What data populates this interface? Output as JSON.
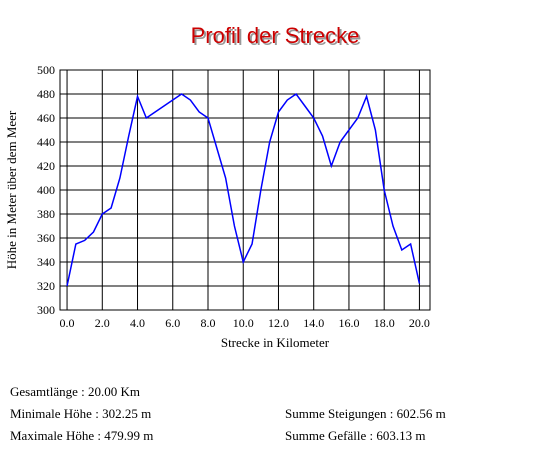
{
  "chart_data": {
    "type": "line",
    "title": "Profil der Strecke",
    "x_label": "Strecke in Kilometer",
    "y_label": "Höhe in Meter über dem Meer",
    "x": [
      0,
      0.5,
      1,
      1.5,
      2,
      2.5,
      3,
      3.5,
      4,
      4.5,
      5,
      5.5,
      6,
      6.5,
      7,
      7.5,
      8,
      8.5,
      9,
      9.5,
      10,
      10.5,
      11,
      11.5,
      12,
      12.5,
      13,
      13.5,
      14,
      14.5,
      15,
      15.5,
      16,
      16.5,
      17,
      17.5,
      18,
      18.5,
      19,
      19.5,
      20
    ],
    "values": [
      320,
      355,
      358,
      365,
      380,
      385,
      410,
      445,
      478,
      460,
      465,
      470,
      475,
      480,
      475,
      465,
      460,
      435,
      410,
      370,
      340,
      355,
      400,
      440,
      465,
      475,
      480,
      470,
      460,
      445,
      420,
      440,
      450,
      460,
      478,
      450,
      400,
      370,
      350,
      355,
      322
    ],
    "color": "#0000ff",
    "xlim": [
      -0.4,
      20.6
    ],
    "ylim": [
      300,
      500
    ],
    "xticks": [
      {
        "value": 0,
        "label": "0.0"
      },
      {
        "value": 2,
        "label": "2.0"
      },
      {
        "value": 4,
        "label": "4.0"
      },
      {
        "value": 6,
        "label": "6.0"
      },
      {
        "value": 8,
        "label": "8.0"
      },
      {
        "value": 10,
        "label": "10.0"
      },
      {
        "value": 12,
        "label": "12.0"
      },
      {
        "value": 14,
        "label": "14.0"
      },
      {
        "value": 16,
        "label": "16.0"
      },
      {
        "value": 18,
        "label": "18.0"
      },
      {
        "value": 20,
        "label": "20.0"
      }
    ],
    "yticks": [
      300,
      320,
      340,
      360,
      380,
      400,
      420,
      440,
      460,
      480,
      500
    ],
    "grid": true
  },
  "stats": {
    "total_length": "Gesamtlänge : 20.00 Km",
    "min_height": "Minimale Höhe : 302.25 m",
    "max_height": "Maximale Höhe : 479.99 m",
    "ascent": "Summe Steigungen : 602.56 m",
    "descent": "Summe Gefälle : 603.13 m"
  }
}
